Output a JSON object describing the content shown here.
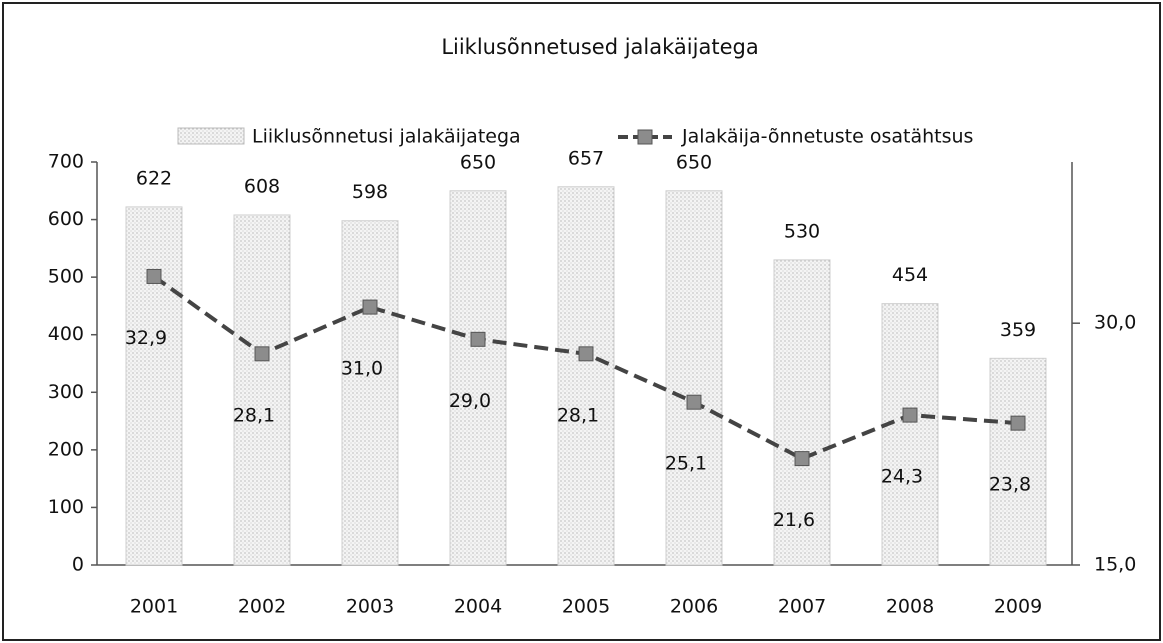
{
  "chart_data": {
    "type": "bar_line",
    "title": "Liiklusõnnetused jalakäijatega",
    "categories": [
      "2001",
      "2002",
      "2003",
      "2004",
      "2005",
      "2006",
      "2007",
      "2008",
      "2009"
    ],
    "series": [
      {
        "name": "Liiklusõnnetusi jalakäijatega",
        "type": "bar",
        "color": "#f4f4f4",
        "values": [
          622,
          608,
          598,
          650,
          657,
          650,
          530,
          454,
          359
        ]
      },
      {
        "name": "Jalakäija-õnnetuste osatähtsus",
        "type": "line",
        "axis": "y2",
        "color": "#444444",
        "marker_color": "#8c8c8c",
        "values": [
          32.9,
          28.1,
          31.0,
          29.0,
          28.1,
          25.1,
          21.6,
          24.3,
          23.8
        ],
        "value_labels": [
          "32,9",
          "28,1",
          "31,0",
          "29,0",
          "28,1",
          "25,1",
          "21,6",
          "24,3",
          "23,8"
        ]
      }
    ],
    "ylim": [
      0,
      700
    ],
    "yticks": [
      0,
      100,
      200,
      300,
      400,
      500,
      600,
      700
    ],
    "y2lim": [
      15,
      40
    ],
    "y2ticks": [
      {
        "value": 15,
        "label": "15,0"
      },
      {
        "value": 30,
        "label": "30,0"
      }
    ],
    "legend": "top"
  }
}
